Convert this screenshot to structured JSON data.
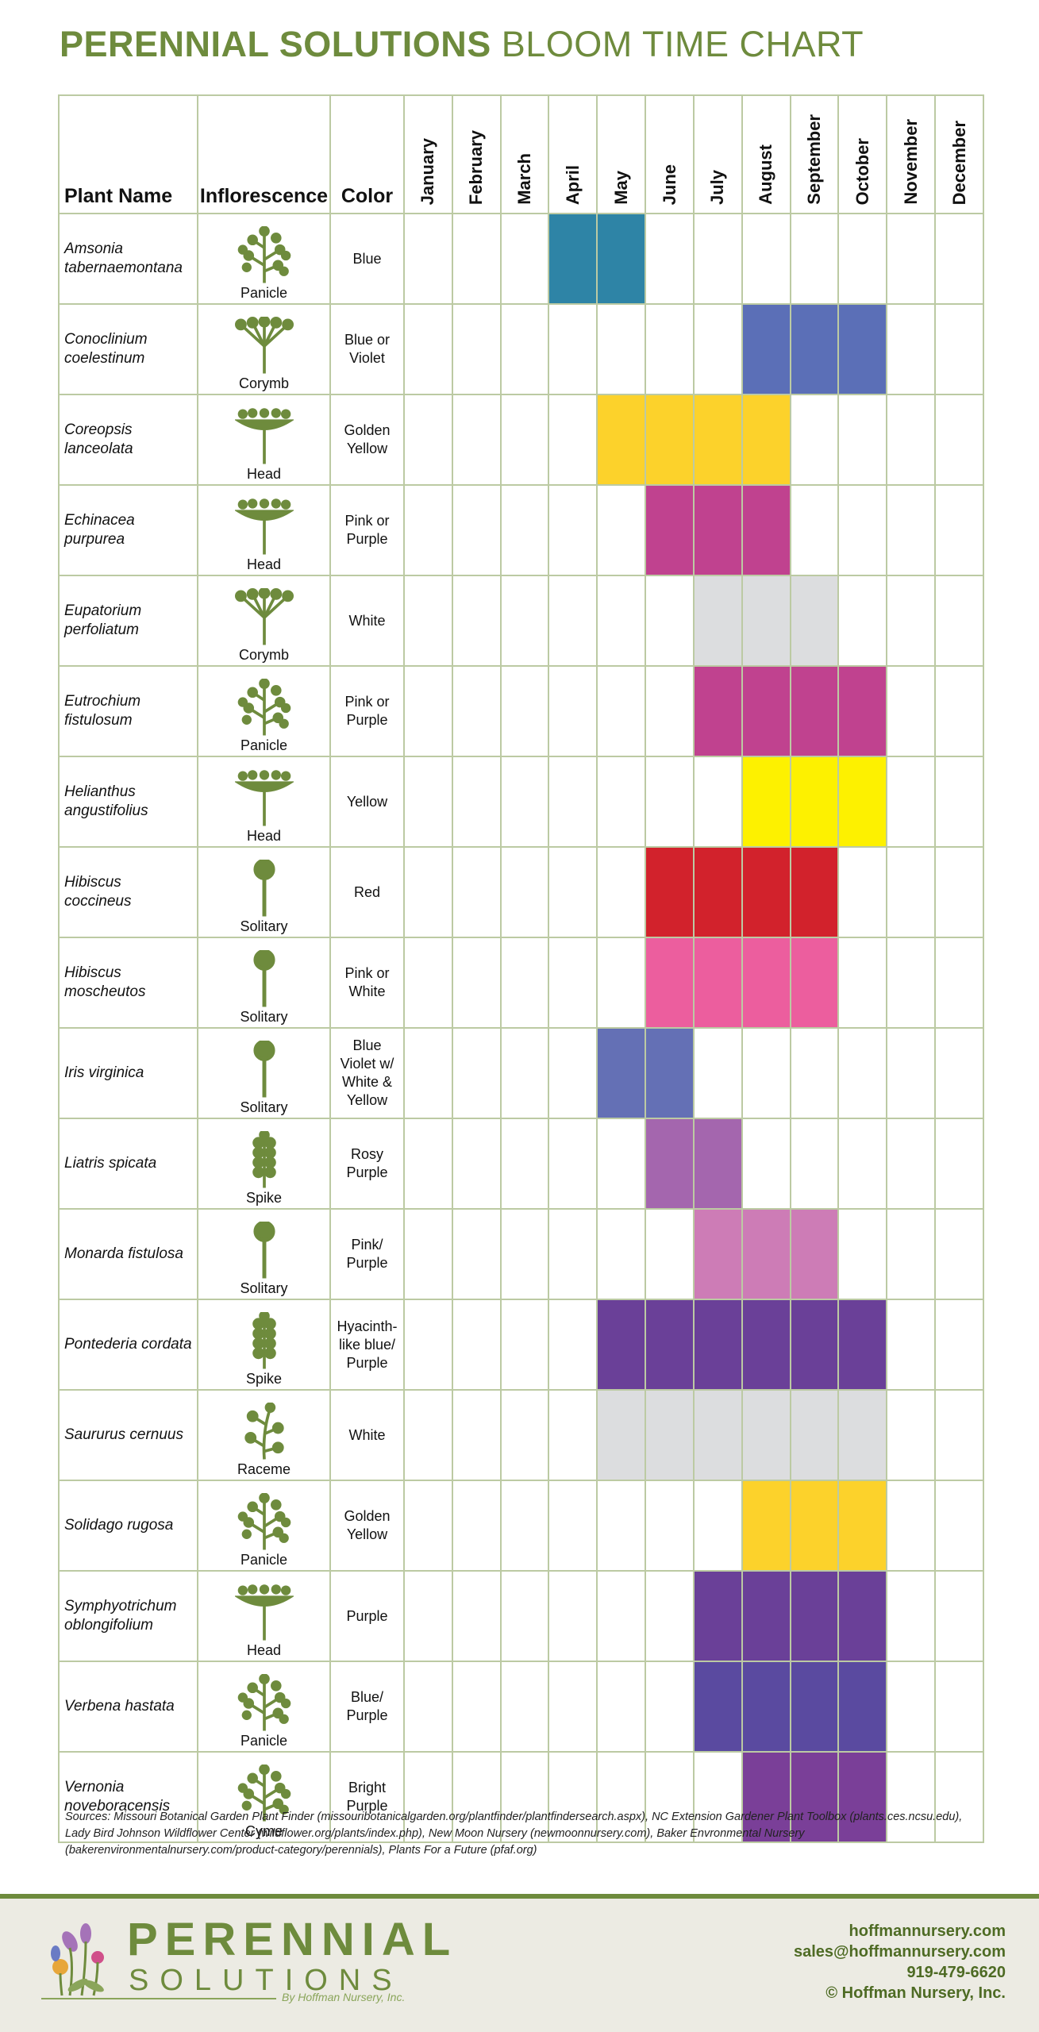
{
  "header": {
    "title_bold": "PERENNIAL SOLUTIONS",
    "title_light": "BLOOM TIME CHART"
  },
  "table": {
    "columns": {
      "plant": "Plant Name",
      "inflorescence": "Inflorescence",
      "color": "Color"
    },
    "months": [
      "January",
      "February",
      "March",
      "April",
      "May",
      "June",
      "July",
      "August",
      "September",
      "October",
      "November",
      "December"
    ],
    "rows": [
      {
        "plant": "Amsonia tabernaemontana",
        "inflorescence": "Panicle",
        "color": "Blue",
        "bloom_months": [
          "April",
          "May"
        ],
        "fill": "#2e84a6"
      },
      {
        "plant": "Conoclinium coelestinum",
        "inflorescence": "Corymb",
        "color": "Blue or Violet",
        "bloom_months": [
          "August",
          "September",
          "October"
        ],
        "fill": "#5b6fb7"
      },
      {
        "plant": "Coreopsis lanceolata",
        "inflorescence": "Head",
        "color": "Golden Yellow",
        "bloom_months": [
          "May",
          "June",
          "July",
          "August"
        ],
        "fill": "#fcd22b"
      },
      {
        "plant": "Echinacea purpurea",
        "inflorescence": "Head",
        "color": "Pink or Purple",
        "bloom_months": [
          "June",
          "July",
          "August"
        ],
        "fill": "#c0428f"
      },
      {
        "plant": "Eupatorium perfoliatum",
        "inflorescence": "Corymb",
        "color": "White",
        "bloom_months": [
          "July",
          "August",
          "September"
        ],
        "fill": "#dcdddf"
      },
      {
        "plant": "Eutrochium fistulosum",
        "inflorescence": "Panicle",
        "color": "Pink or Purple",
        "bloom_months": [
          "July",
          "August",
          "September",
          "October"
        ],
        "fill": "#c0428f"
      },
      {
        "plant": "Helianthus angustifolius",
        "inflorescence": "Head",
        "color": "Yellow",
        "bloom_months": [
          "August",
          "September",
          "October"
        ],
        "fill": "#fdf100"
      },
      {
        "plant": "Hibiscus coccineus",
        "inflorescence": "Solitary",
        "color": "Red",
        "bloom_months": [
          "June",
          "July",
          "August",
          "September"
        ],
        "fill": "#d2222c"
      },
      {
        "plant": "Hibiscus moscheutos",
        "inflorescence": "Solitary",
        "color": "Pink or White",
        "bloom_months": [
          "June",
          "July",
          "August",
          "September"
        ],
        "fill": "#ec5e9e"
      },
      {
        "plant": "Iris virginica",
        "inflorescence": "Solitary",
        "color": "Blue Violet w/ White & Yellow",
        "bloom_months": [
          "May",
          "June"
        ],
        "fill": "#6470b5"
      },
      {
        "plant": "Liatris spicata",
        "inflorescence": "Spike",
        "color": "Rosy Purple",
        "bloom_months": [
          "June",
          "July"
        ],
        "fill": "#a466ae"
      },
      {
        "plant": "Monarda fistulosa",
        "inflorescence": "Solitary",
        "color": "Pink/ Purple",
        "bloom_months": [
          "July",
          "August",
          "September"
        ],
        "fill": "#cd7cb6"
      },
      {
        "plant": "Pontederia cordata",
        "inflorescence": "Spike",
        "color": "Hyacinth-like blue/ Purple",
        "bloom_months": [
          "May",
          "June",
          "July",
          "August",
          "September",
          "October"
        ],
        "fill": "#6a4098"
      },
      {
        "plant": "Saururus cernuus",
        "inflorescence": "Raceme",
        "color": "White",
        "bloom_months": [
          "May",
          "June",
          "July",
          "August",
          "September",
          "October"
        ],
        "fill": "#dcdddf"
      },
      {
        "plant": "Solidago rugosa",
        "inflorescence": "Panicle",
        "color": "Golden Yellow",
        "bloom_months": [
          "August",
          "September",
          "October"
        ],
        "fill": "#fcd22b"
      },
      {
        "plant": "Symphyotrichum oblongifolium",
        "inflorescence": "Head",
        "color": "Purple",
        "bloom_months": [
          "July",
          "August",
          "September",
          "October"
        ],
        "fill": "#6a4098"
      },
      {
        "plant": "Verbena hastata",
        "inflorescence": "Panicle",
        "color": "Blue/ Purple",
        "bloom_months": [
          "July",
          "August",
          "September",
          "October"
        ],
        "fill": "#5a4aa0"
      },
      {
        "plant": "Vernonia noveboracensis",
        "inflorescence": "Cyme",
        "color": "Bright Purple",
        "bloom_months": [
          "August",
          "September",
          "October"
        ],
        "fill": "#7a3f98"
      }
    ]
  },
  "sources": "Sources: Missouri Botanical Garden Plant Finder (missouribotanicalgarden.org/plantfinder/plantfindersearch.aspx), NC Extension Gardener Plant Toolbox (plants.ces.ncsu.edu), Lady Bird Johnson Wildflower Center (wildflower.org/plants/index.php), New Moon Nursery (newmoonnursery.com), Baker Envronmental Nursery (bakerenvironmentalnursery.com/product-category/perennials), Plants For a Future (pfaf.org)",
  "footer": {
    "logo_top": "PERENNIAL",
    "logo_bottom": "SOLUTIONS",
    "logo_byline": "By Hoffman Nursery, Inc.",
    "contact": [
      "hoffmannursery.com",
      "sales@hoffmannursery.com",
      "919-479-6620",
      "© Hoffman Nursery, Inc."
    ]
  }
}
